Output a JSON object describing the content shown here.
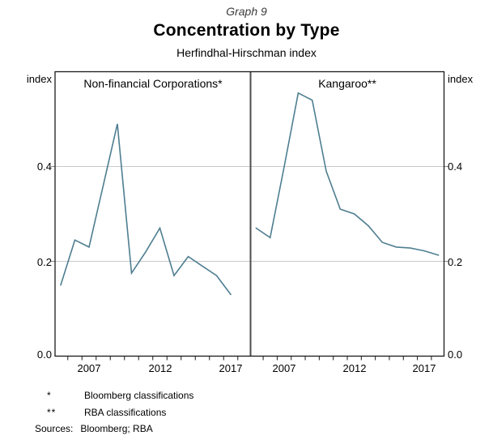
{
  "header": {
    "graph_number": "Graph 9",
    "title": "Concentration by Type",
    "subtitle": "Herfindhal-Hirschman index"
  },
  "axes": {
    "unit_label_left": "index",
    "unit_label_right": "index",
    "y_tick_labels": [
      "0.4",
      "0.2",
      "0.0"
    ],
    "x_tick_labels": [
      "2007",
      "2012",
      "2017"
    ]
  },
  "panels": [
    {
      "label": "Non-financial Corporations*"
    },
    {
      "label": "Kangaroo**"
    }
  ],
  "footnotes": [
    {
      "marker": "*",
      "text": "Bloomberg classifications"
    },
    {
      "marker": "**",
      "text": "RBA classifications"
    }
  ],
  "sources": {
    "label": "Sources:",
    "text": "Bloomberg; RBA"
  },
  "colors": {
    "series_line": "#4e7e90",
    "gridline": "#c9c9c9",
    "frame": "#1a1a1a",
    "divider": "#4d4d4d",
    "tick": "#1a1a1a",
    "outer_stub": "#8c8c8c"
  },
  "chart_data": {
    "type": "line",
    "title": "Concentration by Type",
    "subtitle": "Herfindhal-Hirschman index",
    "unit": "index",
    "ylim": [
      0,
      0.6
    ],
    "y_axis_ticks": [
      0.0,
      0.2,
      0.4
    ],
    "y_gridlines": [
      0.2,
      0.4
    ],
    "x_range": [
      2004.6,
      2018.4
    ],
    "x_labeled_years": [
      2007,
      2012,
      2017
    ],
    "grid": "horizontal-only",
    "legend": "panel-labels",
    "line_color": "#4e7e90",
    "panels": [
      {
        "label": "Non-financial Corporations*",
        "classification_source": "Bloomberg classifications",
        "x": [
          2005,
          2006,
          2007,
          2008,
          2009,
          2010,
          2011,
          2012,
          2013,
          2014,
          2015,
          2016,
          2017
        ],
        "values": [
          0.15,
          0.245,
          0.23,
          0.36,
          0.49,
          0.175,
          0.22,
          0.27,
          0.17,
          0.21,
          0.19,
          0.17,
          0.13
        ]
      },
      {
        "label": "Kangaroo**",
        "classification_source": "RBA classifications",
        "x": [
          2005,
          2006,
          2007,
          2008,
          2009,
          2010,
          2011,
          2012,
          2013,
          2014,
          2015,
          2016,
          2017,
          2018
        ],
        "values": [
          0.27,
          0.25,
          0.4,
          0.555,
          0.54,
          0.39,
          0.31,
          0.3,
          0.275,
          0.24,
          0.23,
          0.228,
          0.222,
          0.213
        ]
      }
    ]
  }
}
